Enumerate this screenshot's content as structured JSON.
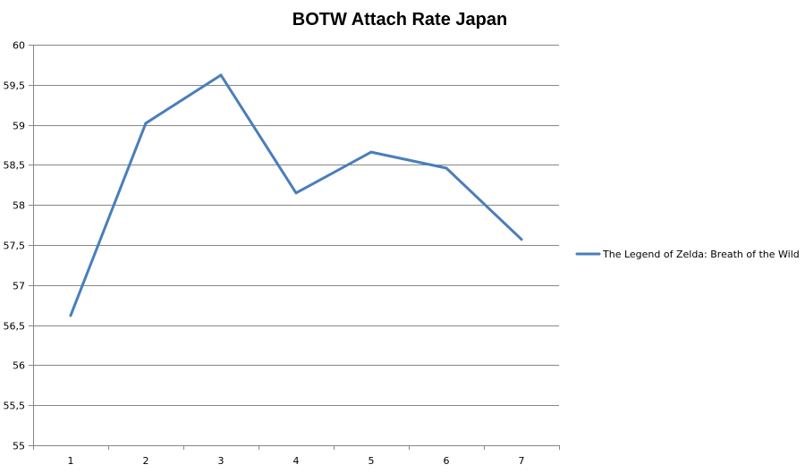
{
  "chart_data": {
    "type": "line",
    "title": "BOTW Attach Rate Japan",
    "xlabel": "",
    "ylabel": "",
    "categories": [
      "1",
      "2",
      "3",
      "4",
      "5",
      "6",
      "7"
    ],
    "series": [
      {
        "name": "The Legend of Zelda: Breath of the Wild",
        "color": "#4a7ebb",
        "values": [
          56.62,
          59.02,
          59.62,
          58.15,
          58.66,
          58.46,
          57.57
        ]
      }
    ],
    "ylim": [
      55,
      60
    ],
    "y_ticks": [
      "55",
      "55,5",
      "56",
      "56,5",
      "57",
      "57,5",
      "58",
      "58,5",
      "59",
      "59,5",
      "60"
    ],
    "grid": true,
    "legend_position": "right"
  }
}
